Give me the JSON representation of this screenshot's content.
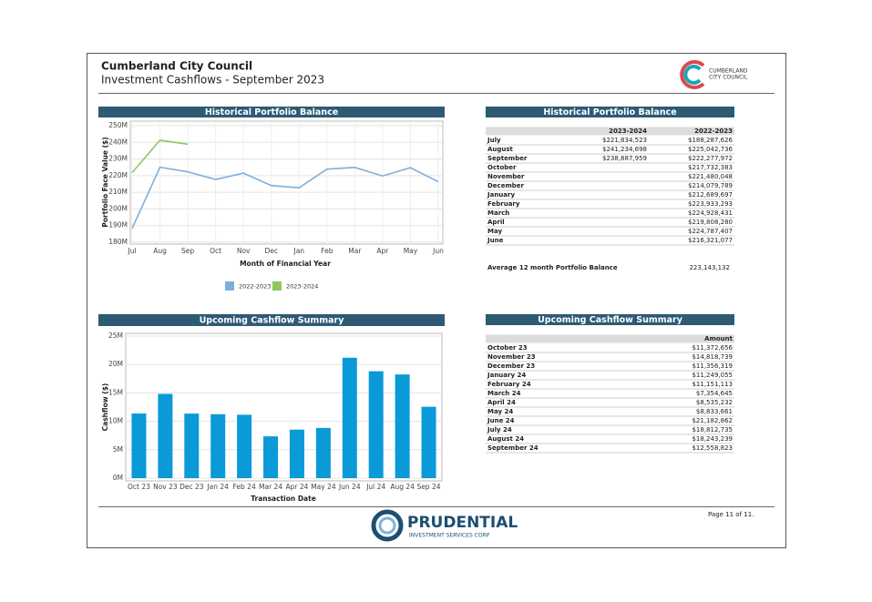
{
  "header": {
    "title": "Cumberland City Council",
    "subtitle": "Investment Cashflows - September 2023",
    "logo_lines": [
      "CUMBERLAND",
      "CITY COUNCIL"
    ]
  },
  "chart_data": [
    {
      "type": "line",
      "title": "Historical Portfolio Balance",
      "y_label": "Portfolio Face Value ($)",
      "x_label": "Month of Financial Year",
      "categories": [
        "Jul",
        "Aug",
        "Sep",
        "Oct",
        "Nov",
        "Dec",
        "Jan",
        "Feb",
        "Mar",
        "Apr",
        "May",
        "Jun"
      ],
      "series": [
        {
          "name": "2022-2023",
          "color": "#7eaedb",
          "values": [
            188287626,
            225042736,
            222277972,
            217732383,
            221480048,
            214079789,
            212689697,
            223933293,
            224928431,
            219808280,
            224787407,
            216321077
          ]
        },
        {
          "name": "2023-2024",
          "color": "#8cc85f",
          "values": [
            221834523,
            241234698,
            238887959,
            null,
            null,
            null,
            null,
            null,
            null,
            null,
            null,
            null
          ]
        }
      ],
      "ylim": [
        180000000,
        250000000
      ],
      "yticks": [
        {
          "value": 180000000,
          "label": "180M"
        },
        {
          "value": 190000000,
          "label": "190M"
        },
        {
          "value": 200000000,
          "label": "200M"
        },
        {
          "value": 210000000,
          "label": "210M"
        },
        {
          "value": 220000000,
          "label": "220M"
        },
        {
          "value": 230000000,
          "label": "230M"
        },
        {
          "value": 240000000,
          "label": "240M"
        },
        {
          "value": 250000000,
          "label": "250M"
        }
      ],
      "grid": true,
      "legend": "bottom"
    },
    {
      "type": "bar",
      "title": "Upcoming Cashflow Summary",
      "y_label": "Cashflow ($)",
      "x_label": "Transaction Date",
      "categories": [
        "Oct 23",
        "Nov 23",
        "Dec 23",
        "Jan 24",
        "Feb 24",
        "Mar 24",
        "Apr 24",
        "May 24",
        "Jun 24",
        "Jul 24",
        "Aug 24",
        "Sep 24"
      ],
      "values": [
        11372656,
        14818739,
        11356319,
        11249055,
        11151113,
        7354645,
        8535232,
        8833661,
        21182862,
        18812735,
        18243239,
        12558823
      ],
      "color": "#0a9ad8",
      "ylim": [
        0,
        25000000
      ],
      "yticks": [
        {
          "value": 0,
          "label": "0M"
        },
        {
          "value": 5000000,
          "label": "5M"
        },
        {
          "value": 10000000,
          "label": "10M"
        },
        {
          "value": 15000000,
          "label": "15M"
        },
        {
          "value": 20000000,
          "label": "20M"
        },
        {
          "value": 25000000,
          "label": "25M"
        }
      ],
      "grid": true
    }
  ],
  "portfolio_table": {
    "title": "Historical Portfolio Balance",
    "header": [
      "2023-2024",
      "2022-2023"
    ],
    "rows": [
      [
        "July",
        "$221,834,523",
        "$188,287,626"
      ],
      [
        "August",
        "$241,234,698",
        "$225,042,736"
      ],
      [
        "September",
        "$238,887,959",
        "$222,277,972"
      ],
      [
        "October",
        null,
        "$217,732,383"
      ],
      [
        "November",
        null,
        "$221,480,048"
      ],
      [
        "December",
        null,
        "$214,079,789"
      ],
      [
        "January",
        null,
        "$212,689,697"
      ],
      [
        "February",
        null,
        "$223,933,293"
      ],
      [
        "March",
        null,
        "$224,928,431"
      ],
      [
        "April",
        null,
        "$219,808,280"
      ],
      [
        "May",
        null,
        "$224,787,407"
      ],
      [
        "June",
        null,
        "$216,321,077"
      ]
    ],
    "average": {
      "label": "Average 12 month Portfolio Balance",
      "value": "223,143,132"
    }
  },
  "cashflow_table": {
    "title": "Upcoming Cashflow Summary",
    "header": [
      "Amount"
    ],
    "rows": [
      [
        "October 23",
        "$11,372,656"
      ],
      [
        "November 23",
        "$14,818,739"
      ],
      [
        "December 23",
        "$11,356,319"
      ],
      [
        "January 24",
        "$11,249,055"
      ],
      [
        "February 24",
        "$11,151,113"
      ],
      [
        "March 24",
        "$7,354,645"
      ],
      [
        "April 24",
        "$8,535,232"
      ],
      [
        "May 24",
        "$8,833,661"
      ],
      [
        "June 24",
        "$21,182,862"
      ],
      [
        "July 24",
        "$18,812,735"
      ],
      [
        "August 24",
        "$18,243,239"
      ],
      [
        "September 24",
        "$12,558,823"
      ]
    ]
  },
  "footer": {
    "page": "Page 11 of 11.",
    "brand": "PRUDENTIAL",
    "brand_sub": "INVESTMENT SERVICES CORP"
  }
}
